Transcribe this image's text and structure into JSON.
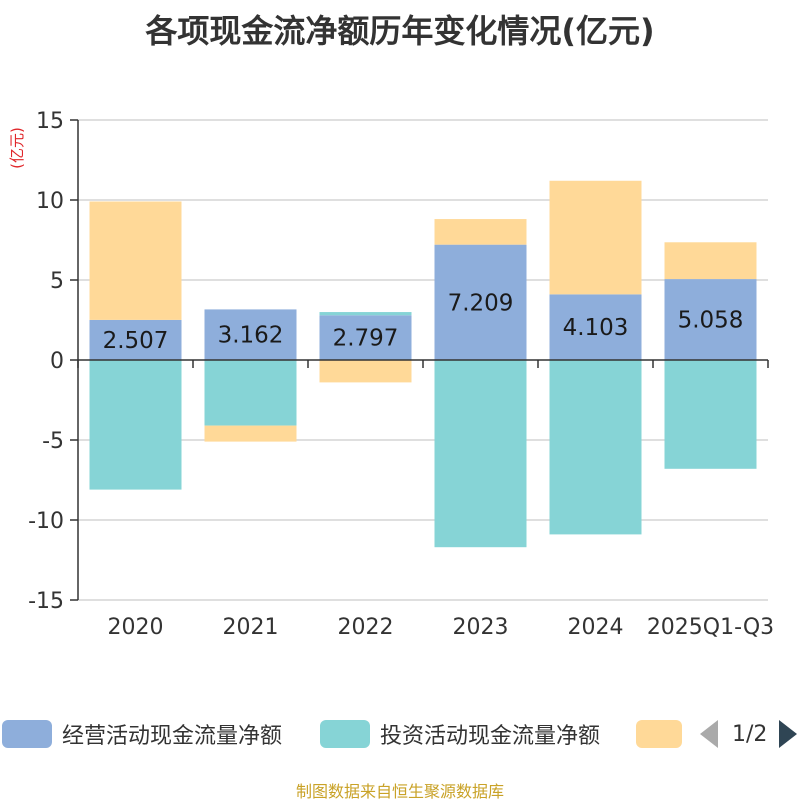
{
  "chart_data": {
    "type": "bar",
    "stacked": true,
    "title": "各项现金流净额历年变化情况(亿元)",
    "ylabel": "(亿元)",
    "ylim": [
      -15,
      15
    ],
    "yticks": [
      15,
      10,
      5,
      0,
      -5,
      -10,
      -15
    ],
    "categories": [
      "2020",
      "2021",
      "2022",
      "2023",
      "2024",
      "2025Q1-Q3"
    ],
    "series": [
      {
        "name": "经营活动现金流量净额",
        "color": "#8eaedb",
        "values": [
          2.507,
          3.162,
          2.797,
          7.209,
          4.103,
          5.058
        ],
        "data_labels": [
          "2.507",
          "3.162",
          "2.797",
          "7.209",
          "4.103",
          "5.058"
        ]
      },
      {
        "name": "投资活动现金流量净额",
        "color": "#86d4d6",
        "values": [
          -8.1,
          -4.1,
          0.2,
          -11.7,
          -10.9,
          -6.8
        ]
      },
      {
        "name": "",
        "color": "#ffd998",
        "values": [
          7.4,
          -1.0,
          -1.4,
          1.6,
          7.1,
          2.3
        ]
      }
    ],
    "legend": {
      "position": "bottom",
      "page": "1/2"
    }
  },
  "source_text": "制图数据来自恒生聚源数据库"
}
